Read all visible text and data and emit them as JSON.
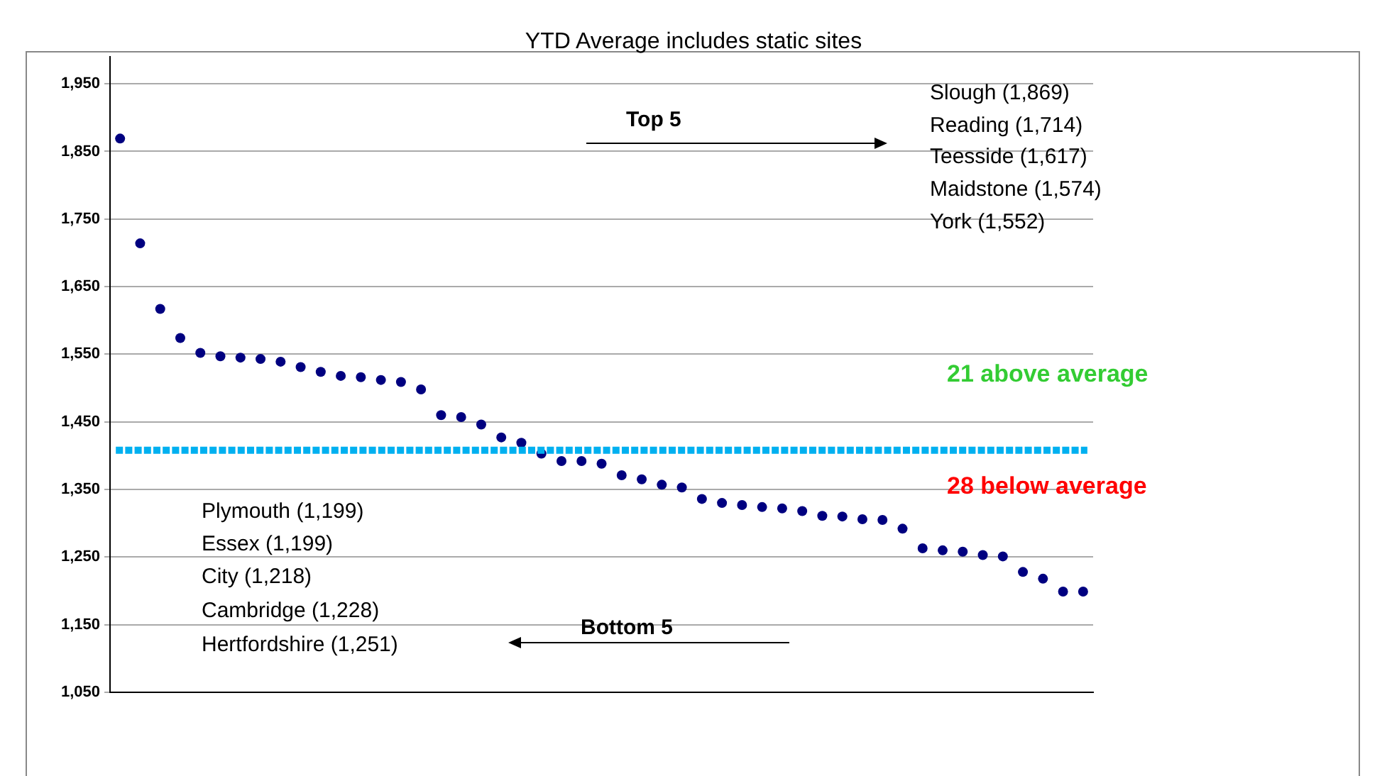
{
  "chart_data": {
    "type": "scatter",
    "title": "YTD  Average includes static sites",
    "categories": [
      null,
      null,
      null,
      null,
      null,
      null,
      null,
      null,
      null,
      null,
      null,
      null,
      null,
      null,
      null,
      null,
      null,
      null,
      null,
      null,
      null,
      null,
      null,
      null,
      null,
      null,
      null,
      null,
      null,
      null,
      null,
      null,
      null,
      null,
      null,
      null,
      null,
      null,
      null,
      null,
      null,
      null,
      null,
      null,
      null,
      null,
      null,
      null,
      null
    ],
    "series": [
      {
        "color": "#000080",
        "values": [
          1869,
          1714,
          1617,
          1574,
          1552,
          1547,
          1545,
          1543,
          1539,
          1531,
          1524,
          1518,
          1516,
          1512,
          1509,
          1498,
          1460,
          1457,
          1446,
          1427,
          1419,
          1403,
          1392,
          1392,
          1388,
          1371,
          1365,
          1357,
          1353,
          1336,
          1330,
          1327,
          1324,
          1322,
          1318,
          1311,
          1310,
          1306,
          1305,
          1292,
          1263,
          1260,
          1258,
          1253,
          1251,
          1228,
          1218,
          1199,
          1199
        ]
      }
    ],
    "marker": "circle",
    "ylim": [
      1050,
      1990
    ],
    "yticks": [
      {
        "value": 1050,
        "label": "1,050"
      },
      {
        "value": 1150,
        "label": "1,150"
      },
      {
        "value": 1250,
        "label": "1,250"
      },
      {
        "value": 1350,
        "label": "1,350"
      },
      {
        "value": 1450,
        "label": "1,450"
      },
      {
        "value": 1550,
        "label": "1,550"
      },
      {
        "value": 1650,
        "label": "1,650"
      },
      {
        "value": 1750,
        "label": "1,750"
      },
      {
        "value": 1850,
        "label": "1,850"
      },
      {
        "value": 1950,
        "label": "1,950"
      }
    ],
    "grid": "y",
    "tick_labels": "y",
    "legend": false,
    "ref_lines": [
      {
        "axis": "y",
        "value": 1408,
        "color": "#00b0f0",
        "line_style": "dotted"
      }
    ],
    "annotations": [
      "Top 5",
      "Slough (1,869)",
      "Reading (1,714)",
      "Teesside (1,617)",
      "Maidstone (1,574)",
      "York (1,552)",
      "21 above average",
      "28 below average",
      "Plymouth (1,199)",
      "Essex (1,199)",
      "City (1,218)",
      "Cambridge (1,228)",
      "Hertfordshire (1,251)",
      "Bottom 5"
    ]
  }
}
